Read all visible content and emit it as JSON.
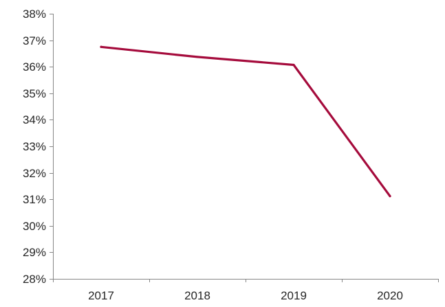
{
  "chart_data": {
    "type": "line",
    "title": "",
    "xlabel": "",
    "ylabel": "",
    "categories": [
      "2017",
      "2018",
      "2019",
      "2020"
    ],
    "series": [
      {
        "color": "#A50B3C",
        "values": [
          36.75,
          36.37,
          36.07,
          31.12
        ]
      }
    ],
    "ylim": [
      28,
      38
    ],
    "yticks": [
      28,
      29,
      30,
      31,
      32,
      33,
      34,
      35,
      36,
      37,
      38
    ],
    "ytick_labels": [
      "28%",
      "29%",
      "30%",
      "31%",
      "32%",
      "33%",
      "34%",
      "35%",
      "36%",
      "37%",
      "38%"
    ],
    "grid": false,
    "legend": "none"
  }
}
